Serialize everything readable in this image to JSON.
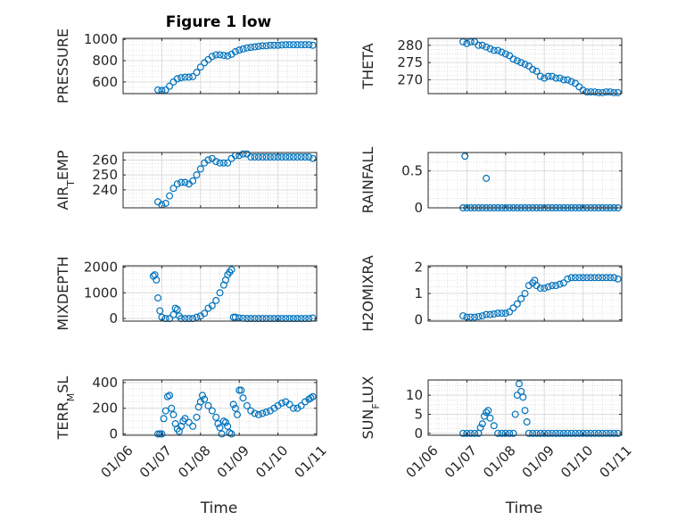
{
  "figure": {
    "title": "Figure 1 low",
    "marker_color": "#0072BD",
    "grid": true,
    "minor_grid": true
  },
  "chart_data": [
    {
      "type": "scatter",
      "ylabel": "PRESSURE",
      "xlabel": "",
      "xlim": [
        "01/06",
        "01/11"
      ],
      "x_ticks": [
        "01/06",
        "01/07",
        "01/08",
        "01/09",
        "01/10",
        "01/11"
      ],
      "ylim": [
        490,
        1010
      ],
      "y_ticks": [
        "600",
        "800",
        "1000"
      ],
      "y_tick_values": [
        600,
        800,
        1000
      ],
      "x_days": [
        0.9,
        1.0,
        1.1,
        1.2,
        1.3,
        1.4,
        1.5,
        1.6,
        1.7,
        1.8,
        1.9,
        2.0,
        2.1,
        2.2,
        2.3,
        2.4,
        2.5,
        2.6,
        2.7,
        2.8,
        2.9,
        3.0,
        3.1,
        3.2,
        3.3,
        3.4,
        3.5,
        3.6,
        3.7,
        3.8,
        3.9,
        4.0,
        4.1,
        4.2,
        4.3,
        4.4,
        4.5,
        4.6,
        4.7,
        4.8,
        4.9
      ],
      "y": [
        525,
        520,
        525,
        560,
        600,
        630,
        640,
        645,
        645,
        650,
        690,
        740,
        780,
        810,
        840,
        855,
        855,
        850,
        845,
        860,
        885,
        900,
        910,
        920,
        925,
        930,
        935,
        940,
        940,
        945,
        945,
        945,
        948,
        950,
        950,
        950,
        950,
        950,
        950,
        950,
        945
      ]
    },
    {
      "type": "scatter",
      "ylabel": "THETA",
      "xlabel": "",
      "xlim": [
        "01/06",
        "01/11"
      ],
      "x_ticks": [
        "01/06",
        "01/07",
        "01/08",
        "01/09",
        "01/10",
        "01/11"
      ],
      "ylim": [
        266,
        282
      ],
      "y_ticks": [
        "270",
        "275",
        "280"
      ],
      "y_tick_values": [
        270,
        275,
        280
      ],
      "x_days": [
        0.9,
        1.0,
        1.1,
        1.2,
        1.3,
        1.4,
        1.5,
        1.6,
        1.7,
        1.8,
        1.9,
        2.0,
        2.1,
        2.2,
        2.3,
        2.4,
        2.5,
        2.6,
        2.7,
        2.8,
        2.9,
        3.0,
        3.1,
        3.2,
        3.3,
        3.4,
        3.5,
        3.6,
        3.7,
        3.8,
        3.9,
        4.0,
        4.1,
        4.2,
        4.3,
        4.4,
        4.5,
        4.6,
        4.7,
        4.8,
        4.9
      ],
      "y": [
        281,
        280.5,
        281,
        281,
        280,
        280,
        279.5,
        279,
        278.5,
        278.5,
        278,
        277.5,
        277,
        276,
        275.5,
        275,
        274.5,
        274,
        273,
        272.5,
        271,
        270.5,
        271,
        271,
        270.5,
        270.5,
        270,
        270,
        269.5,
        269,
        268,
        267,
        266.5,
        266.5,
        266.5,
        266.3,
        266.3,
        266.5,
        266.5,
        266.3,
        266.3
      ]
    },
    {
      "type": "scatter",
      "ylabel": "AIR_TEMP",
      "xlabel": "",
      "xlim": [
        "01/06",
        "01/11"
      ],
      "x_ticks": [
        "01/06",
        "01/07",
        "01/08",
        "01/09",
        "01/10",
        "01/11"
      ],
      "ylim": [
        228,
        265
      ],
      "y_ticks": [
        "240",
        "250",
        "260"
      ],
      "y_tick_values": [
        240,
        250,
        260
      ],
      "x_days": [
        0.9,
        1.0,
        1.1,
        1.2,
        1.3,
        1.4,
        1.5,
        1.6,
        1.7,
        1.8,
        1.9,
        2.0,
        2.1,
        2.2,
        2.3,
        2.4,
        2.5,
        2.6,
        2.7,
        2.8,
        2.9,
        3.0,
        3.1,
        3.2,
        3.3,
        3.4,
        3.5,
        3.6,
        3.7,
        3.8,
        3.9,
        4.0,
        4.1,
        4.2,
        4.3,
        4.4,
        4.5,
        4.6,
        4.7,
        4.8,
        4.9
      ],
      "y": [
        232,
        230,
        231,
        236,
        241,
        244,
        245,
        245,
        244,
        246,
        250,
        254,
        258,
        260,
        261,
        259,
        258,
        258,
        258,
        261,
        263,
        263,
        264,
        264,
        262,
        262,
        262,
        262,
        262,
        262,
        262,
        262,
        262,
        262,
        262,
        262,
        262,
        262,
        262,
        262,
        261
      ]
    },
    {
      "type": "scatter",
      "ylabel": "RAINFALL",
      "xlabel": "",
      "xlim": [
        "01/06",
        "01/11"
      ],
      "x_ticks": [
        "01/06",
        "01/07",
        "01/08",
        "01/09",
        "01/10",
        "01/11"
      ],
      "ylim": [
        0,
        0.75
      ],
      "y_ticks": [
        "0",
        "0.5"
      ],
      "y_tick_values": [
        0,
        0.5
      ],
      "x_days": [
        0.9,
        1.0,
        1.1,
        1.2,
        1.3,
        1.4,
        1.5,
        1.6,
        1.7,
        1.8,
        1.9,
        2.0,
        2.1,
        2.2,
        2.3,
        2.4,
        2.5,
        2.6,
        2.7,
        2.8,
        2.9,
        3.0,
        3.1,
        3.2,
        3.3,
        3.4,
        3.5,
        3.6,
        3.7,
        3.8,
        3.9,
        4.0,
        4.1,
        4.2,
        4.3,
        4.4,
        4.5,
        4.6,
        4.7,
        4.8,
        4.9,
        0.95,
        1.5
      ],
      "y": [
        0,
        0,
        0,
        0,
        0,
        0,
        0,
        0,
        0,
        0,
        0,
        0,
        0,
        0,
        0,
        0,
        0,
        0,
        0,
        0,
        0,
        0,
        0,
        0,
        0,
        0,
        0,
        0,
        0,
        0,
        0,
        0,
        0,
        0,
        0,
        0,
        0,
        0,
        0,
        0,
        0,
        0.7,
        0.4
      ]
    },
    {
      "type": "scatter",
      "ylabel": "MIXDEPTH",
      "xlabel": "",
      "xlim": [
        "01/06",
        "01/11"
      ],
      "x_ticks": [
        "01/06",
        "01/07",
        "01/08",
        "01/09",
        "01/10",
        "01/11"
      ],
      "ylim": [
        -100,
        2050
      ],
      "y_ticks": [
        "0",
        "1000",
        "2000"
      ],
      "y_tick_values": [
        0,
        1000,
        2000
      ],
      "x_days": [
        0.78,
        0.82,
        0.86,
        0.9,
        0.95,
        1.0,
        1.1,
        1.2,
        1.3,
        1.35,
        1.4,
        1.45,
        1.5,
        1.6,
        1.7,
        1.8,
        1.9,
        2.0,
        2.1,
        2.2,
        2.3,
        2.4,
        2.5,
        2.6,
        2.65,
        2.7,
        2.75,
        2.8,
        2.85,
        2.9,
        3.0,
        3.1,
        3.2,
        3.3,
        3.4,
        3.5,
        3.6,
        3.7,
        3.8,
        3.9,
        4.0,
        4.1,
        4.2,
        4.3,
        4.4,
        4.5,
        4.6,
        4.7,
        4.8,
        4.9
      ],
      "y": [
        1650,
        1700,
        1500,
        800,
        300,
        50,
        0,
        0,
        150,
        400,
        350,
        100,
        0,
        0,
        0,
        0,
        50,
        100,
        200,
        400,
        500,
        700,
        1000,
        1300,
        1500,
        1700,
        1800,
        1900,
        50,
        50,
        20,
        10,
        0,
        0,
        0,
        0,
        0,
        0,
        0,
        0,
        0,
        0,
        0,
        0,
        0,
        0,
        0,
        0,
        0,
        20
      ]
    },
    {
      "type": "scatter",
      "ylabel": "H2OMIXRA",
      "xlabel": "",
      "xlim": [
        "01/06",
        "01/11"
      ],
      "x_ticks": [
        "01/06",
        "01/07",
        "01/08",
        "01/09",
        "01/10",
        "01/11"
      ],
      "ylim": [
        -0.05,
        2.05
      ],
      "y_ticks": [
        "0",
        "1",
        "2"
      ],
      "y_tick_values": [
        0,
        1,
        2
      ],
      "x_days": [
        0.9,
        1.0,
        1.1,
        1.2,
        1.3,
        1.4,
        1.5,
        1.6,
        1.7,
        1.8,
        1.9,
        2.0,
        2.1,
        2.2,
        2.3,
        2.4,
        2.5,
        2.6,
        2.7,
        2.75,
        2.8,
        2.9,
        3.0,
        3.1,
        3.2,
        3.3,
        3.4,
        3.5,
        3.6,
        3.7,
        3.8,
        3.9,
        4.0,
        4.1,
        4.2,
        4.3,
        4.4,
        4.5,
        4.6,
        4.7,
        4.8,
        4.9
      ],
      "y": [
        0.15,
        0.1,
        0.1,
        0.1,
        0.12,
        0.15,
        0.2,
        0.2,
        0.22,
        0.25,
        0.25,
        0.25,
        0.3,
        0.45,
        0.6,
        0.8,
        1.0,
        1.3,
        1.4,
        1.5,
        1.3,
        1.2,
        1.2,
        1.25,
        1.3,
        1.3,
        1.35,
        1.4,
        1.55,
        1.6,
        1.6,
        1.6,
        1.6,
        1.6,
        1.6,
        1.6,
        1.6,
        1.6,
        1.6,
        1.6,
        1.6,
        1.55
      ]
    },
    {
      "type": "scatter",
      "ylabel": "TERR_MSL",
      "xlabel": "Time",
      "xlim": [
        "01/06",
        "01/11"
      ],
      "x_ticks": [
        "01/06",
        "01/07",
        "01/08",
        "01/09",
        "01/10",
        "01/11"
      ],
      "ylim": [
        -10,
        420
      ],
      "y_ticks": [
        "0",
        "200",
        "400"
      ],
      "y_tick_values": [
        0,
        200,
        400
      ],
      "x_days": [
        0.9,
        0.95,
        1.0,
        1.05,
        1.1,
        1.15,
        1.2,
        1.25,
        1.3,
        1.35,
        1.4,
        1.45,
        1.5,
        1.55,
        1.6,
        1.7,
        1.8,
        1.9,
        1.95,
        2.0,
        2.05,
        2.1,
        2.2,
        2.3,
        2.4,
        2.45,
        2.5,
        2.55,
        2.6,
        2.65,
        2.7,
        2.75,
        2.8,
        2.85,
        2.9,
        2.95,
        3.0,
        3.05,
        3.1,
        3.2,
        3.3,
        3.4,
        3.5,
        3.6,
        3.7,
        3.8,
        3.9,
        4.0,
        4.1,
        4.2,
        4.3,
        4.4,
        4.5,
        4.6,
        4.7,
        4.8,
        4.85,
        4.9
      ],
      "y": [
        0,
        0,
        0,
        120,
        180,
        290,
        300,
        200,
        150,
        80,
        40,
        20,
        60,
        100,
        120,
        90,
        60,
        130,
        210,
        250,
        300,
        270,
        220,
        180,
        130,
        80,
        50,
        0,
        100,
        90,
        60,
        10,
        0,
        230,
        200,
        150,
        340,
        340,
        280,
        220,
        180,
        160,
        150,
        160,
        170,
        180,
        200,
        220,
        240,
        250,
        230,
        200,
        200,
        220,
        250,
        270,
        280,
        290
      ]
    },
    {
      "type": "scatter",
      "ylabel": "SUN_FLUX",
      "xlabel": "Time",
      "xlim": [
        "01/06",
        "01/11"
      ],
      "x_ticks": [
        "01/06",
        "01/07",
        "01/08",
        "01/09",
        "01/10",
        "01/11"
      ],
      "ylim": [
        -0.5,
        14
      ],
      "y_ticks": [
        "0",
        "5",
        "10"
      ],
      "y_tick_values": [
        0,
        5,
        10
      ],
      "x_days": [
        0.9,
        1.0,
        1.1,
        1.2,
        1.3,
        1.35,
        1.4,
        1.45,
        1.5,
        1.55,
        1.6,
        1.7,
        1.8,
        1.9,
        2.0,
        2.1,
        2.2,
        2.25,
        2.3,
        2.35,
        2.4,
        2.45,
        2.5,
        2.55,
        2.6,
        2.7,
        2.8,
        2.9,
        3.0,
        3.1,
        3.2,
        3.3,
        3.4,
        3.5,
        3.6,
        3.7,
        3.8,
        3.9,
        4.0,
        4.1,
        4.2,
        4.3,
        4.4,
        4.5,
        4.6,
        4.7,
        4.8,
        4.9
      ],
      "y": [
        0,
        0,
        0,
        0,
        0,
        1.5,
        2.5,
        4.5,
        5.5,
        6,
        4,
        2,
        0,
        0,
        0,
        0,
        0,
        5,
        10,
        13,
        11,
        9.5,
        6,
        3,
        0,
        0,
        0,
        0,
        0,
        0,
        0,
        0,
        0,
        0,
        0,
        0,
        0,
        0,
        0,
        0,
        0,
        0,
        0,
        0,
        0,
        0,
        0,
        0
      ]
    }
  ]
}
